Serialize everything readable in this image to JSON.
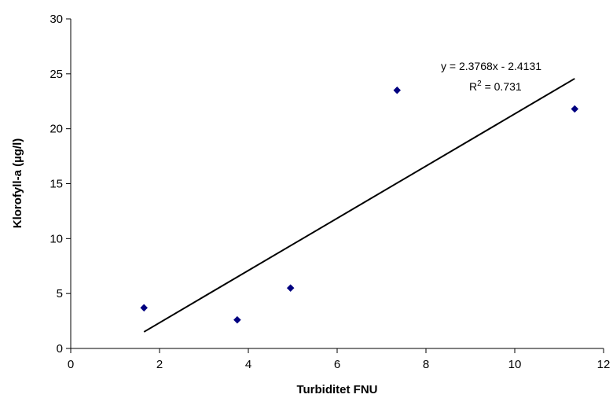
{
  "chart_data": {
    "type": "scatter",
    "title": "",
    "xlabel": "Turbiditet FNU",
    "ylabel": "Klorofyll-a (µg/l)",
    "xlim": [
      0,
      12
    ],
    "ylim": [
      0,
      30
    ],
    "x_ticks": [
      "0",
      "2",
      "4",
      "6",
      "8",
      "10",
      "12"
    ],
    "y_ticks": [
      "0",
      "5",
      "10",
      "15",
      "20",
      "25",
      "30"
    ],
    "grid": false,
    "legend": "none",
    "marker_color": "#000080",
    "points": [
      {
        "x": 1.65,
        "y": 3.7
      },
      {
        "x": 3.75,
        "y": 2.6
      },
      {
        "x": 4.95,
        "y": 5.5
      },
      {
        "x": 7.35,
        "y": 23.5
      },
      {
        "x": 11.35,
        "y": 21.8
      }
    ],
    "trendline": {
      "slope": 2.3768,
      "intercept": -2.4131,
      "x_range": [
        1.65,
        11.35
      ],
      "equation": "y = 2.3768x - 2.4131",
      "r2_label": "R",
      "r2_sup": "2",
      "r2_value": " = 0.731"
    }
  }
}
